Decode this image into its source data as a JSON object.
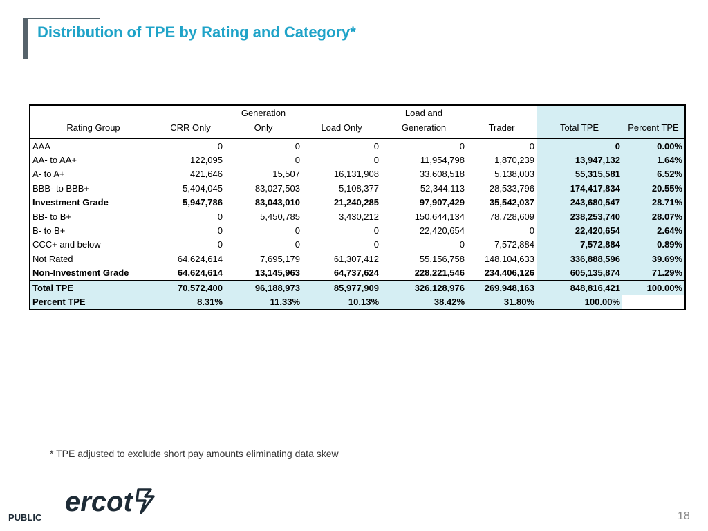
{
  "slide": {
    "title": "Distribution of TPE by Rating and Category*",
    "footnote": "* TPE adjusted to exclude short pay amounts eliminating data skew",
    "classification": "PUBLIC",
    "page_number": "18",
    "logo_text": "ercot"
  },
  "colors": {
    "title": "#1fa3c8",
    "highlight": "#d5eef3",
    "accent_bar": "#56636b",
    "logo": "#1e2b36"
  },
  "table": {
    "headers": {
      "rating_group": "Rating Group",
      "crr_only": "CRR Only",
      "generation_only_1": "Generation",
      "generation_only_2": "Only",
      "load_only": "Load Only",
      "load_and_generation_1": "Load and",
      "load_and_generation_2": "Generation",
      "trader": "Trader",
      "total_tpe": "Total TPE",
      "percent_tpe": "Percent TPE"
    },
    "rows": [
      {
        "label": "AAA",
        "crr": "0",
        "gen": "0",
        "load": "0",
        "loadgen": "0",
        "trader": "0",
        "total": "0",
        "pct": "0.00%"
      },
      {
        "label": "AA- to AA+",
        "crr": "122,095",
        "gen": "0",
        "load": "0",
        "loadgen": "11,954,798",
        "trader": "1,870,239",
        "total": "13,947,132",
        "pct": "1.64%"
      },
      {
        "label": "A- to A+",
        "crr": "421,646",
        "gen": "15,507",
        "load": "16,131,908",
        "loadgen": "33,608,518",
        "trader": "5,138,003",
        "total": "55,315,581",
        "pct": "6.52%"
      },
      {
        "label": "BBB- to BBB+",
        "crr": "5,404,045",
        "gen": "83,027,503",
        "load": "5,108,377",
        "loadgen": "52,344,113",
        "trader": "28,533,796",
        "total": "174,417,834",
        "pct": "20.55%"
      },
      {
        "label": "Investment Grade",
        "crr": "5,947,786",
        "gen": "83,043,010",
        "load": "21,240,285",
        "loadgen": "97,907,429",
        "trader": "35,542,037",
        "total": "243,680,547",
        "pct": "28.71%"
      },
      {
        "label": "BB- to B+",
        "crr": "0",
        "gen": "5,450,785",
        "load": "3,430,212",
        "loadgen": "150,644,134",
        "trader": "78,728,609",
        "total": "238,253,740",
        "pct": "28.07%"
      },
      {
        "label": "B- to B+",
        "crr": "0",
        "gen": "0",
        "load": "0",
        "loadgen": "22,420,654",
        "trader": "0",
        "total": "22,420,654",
        "pct": "2.64%"
      },
      {
        "label": "CCC+ and below",
        "crr": "0",
        "gen": "0",
        "load": "0",
        "loadgen": "0",
        "trader": "7,572,884",
        "total": "7,572,884",
        "pct": "0.89%"
      },
      {
        "label": "Not Rated",
        "crr": "64,624,614",
        "gen": "7,695,179",
        "load": "61,307,412",
        "loadgen": "55,156,758",
        "trader": "148,104,633",
        "total": "336,888,596",
        "pct": "39.69%"
      },
      {
        "label": "Non-Investment Grade",
        "crr": "64,624,614",
        "gen": "13,145,963",
        "load": "64,737,624",
        "loadgen": "228,221,546",
        "trader": "234,406,126",
        "total": "605,135,874",
        "pct": "71.29%"
      },
      {
        "label": "Total TPE",
        "crr": "70,572,400",
        "gen": "96,188,973",
        "load": "85,977,909",
        "loadgen": "326,128,976",
        "trader": "269,948,163",
        "total": "848,816,421",
        "pct": "100.00%"
      },
      {
        "label": "Percent TPE",
        "crr": "8.31%",
        "gen": "11.33%",
        "load": "10.13%",
        "loadgen": "38.42%",
        "trader": "31.80%",
        "total": "100.00%",
        "pct": ""
      }
    ]
  }
}
